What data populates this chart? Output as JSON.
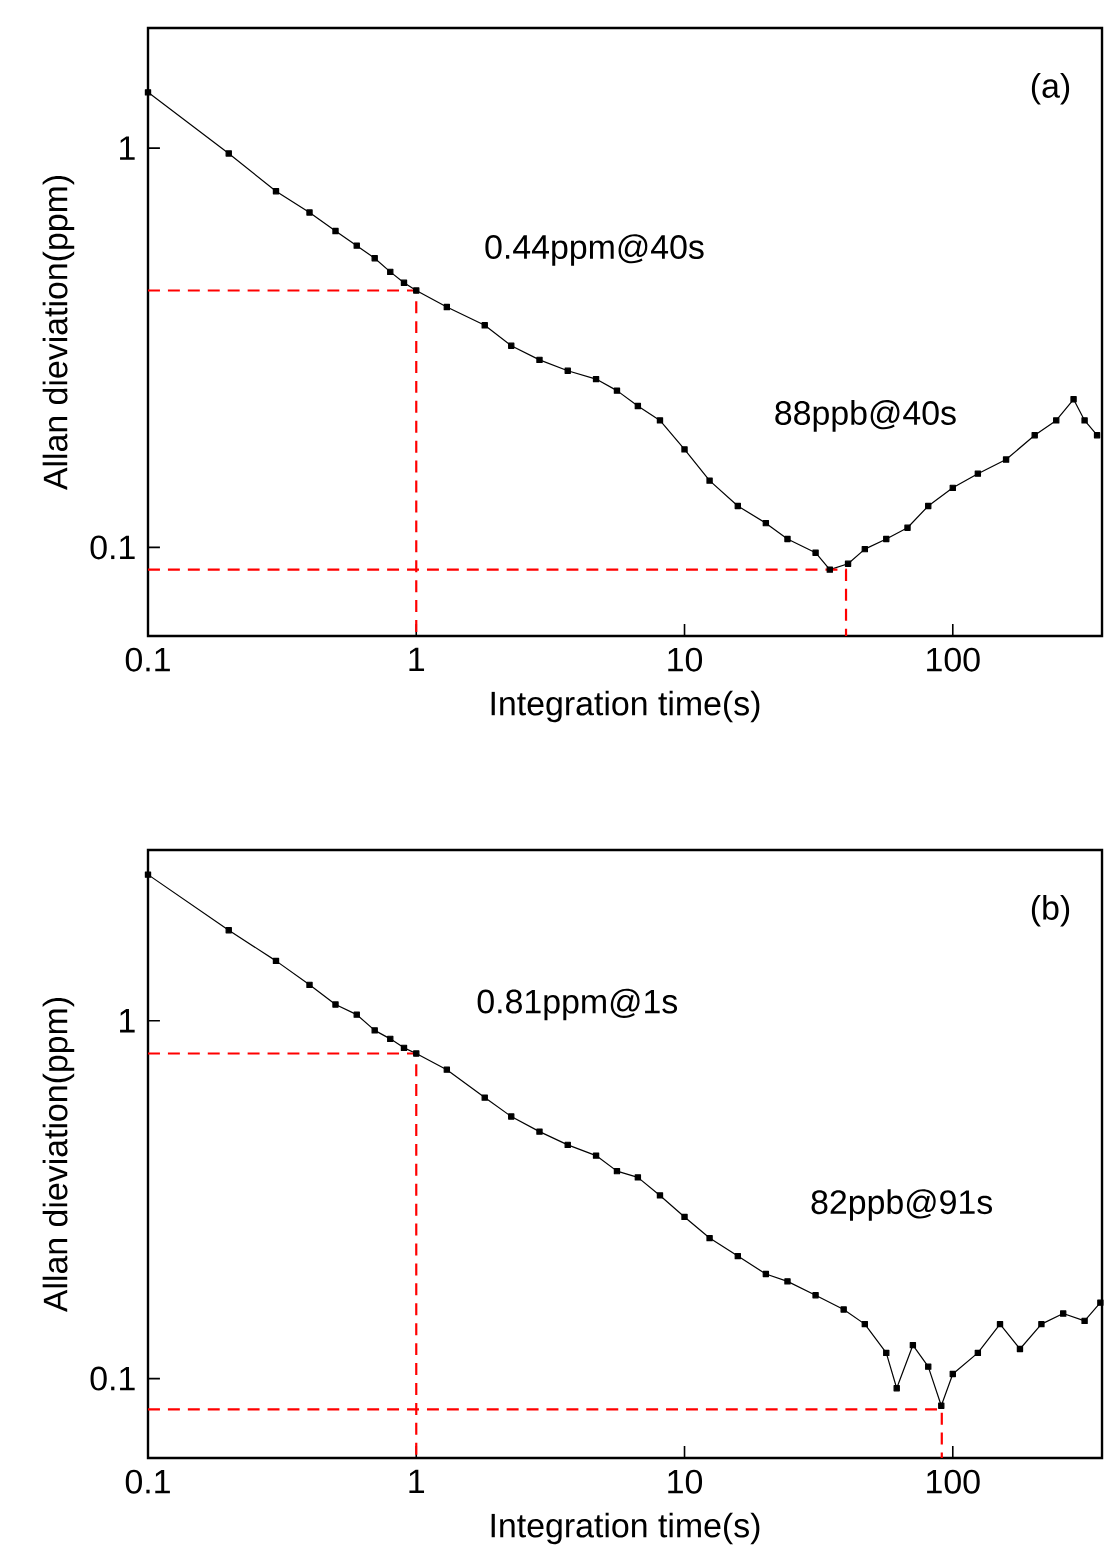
{
  "chart_data": [
    {
      "type": "line",
      "xlabel": "Integration time(s)",
      "ylabel": "Allan dieviation(ppm)",
      "log": "xy",
      "xlim": [
        0.1,
        360
      ],
      "ylim": [
        0.06,
        2
      ],
      "xticks": [
        0.1,
        1,
        10,
        100
      ],
      "yticks": [
        0.1,
        1
      ],
      "annotations": [
        "(a)",
        "0.44ppm@40s",
        "88ppb@40s"
      ],
      "series": [
        {
          "color": "#000000",
          "marker": "square",
          "line_style": "solid",
          "x": [
            0.1,
            0.2,
            0.3,
            0.4,
            0.5,
            0.6,
            0.7,
            0.8,
            0.9,
            1,
            1.3,
            1.8,
            2.26,
            2.88,
            3.67,
            4.68,
            5.6,
            6.7,
            8.1,
            10,
            12.4,
            15.8,
            20.1,
            24.2,
            30.8,
            34.8,
            40.7,
            47,
            56.5,
            67.8,
            81,
            100,
            124,
            158,
            202,
            243,
            282,
            310,
            345
          ],
          "values": [
            1.38,
            0.97,
            0.78,
            0.69,
            0.62,
            0.57,
            0.53,
            0.49,
            0.46,
            0.44,
            0.4,
            0.36,
            0.32,
            0.295,
            0.277,
            0.264,
            0.247,
            0.226,
            0.208,
            0.176,
            0.147,
            0.127,
            0.115,
            0.105,
            0.097,
            0.088,
            0.091,
            0.099,
            0.105,
            0.112,
            0.127,
            0.141,
            0.153,
            0.166,
            0.191,
            0.208,
            0.235,
            0.208,
            0.191
          ]
        },
        {
          "color": "#ff0000",
          "marker": "none",
          "line_style": "dashed",
          "x": [
            0.1,
            1,
            1
          ],
          "values": [
            0.44,
            0.44,
            0.06
          ]
        },
        {
          "color": "#ff0000",
          "marker": "none",
          "line_style": "dashed",
          "x": [
            0.1,
            40,
            40
          ],
          "values": [
            0.088,
            0.088,
            0.06
          ]
        }
      ]
    },
    {
      "type": "line",
      "xlabel": "Integration time(s)",
      "ylabel": "Allan dieviation(ppm)",
      "log": "xy",
      "xlim": [
        0.1,
        360
      ],
      "ylim": [
        0.06,
        3
      ],
      "xticks": [
        0.1,
        1,
        10,
        100
      ],
      "yticks": [
        0.1,
        1
      ],
      "annotations": [
        "(b)",
        "0.81ppm@1s",
        "82ppb@91s"
      ],
      "series": [
        {
          "color": "#000000",
          "marker": "square",
          "line_style": "solid",
          "x": [
            0.1,
            0.2,
            0.3,
            0.4,
            0.5,
            0.6,
            0.7,
            0.8,
            0.9,
            1,
            1.3,
            1.8,
            2.26,
            2.88,
            3.67,
            4.68,
            5.6,
            6.7,
            8.1,
            10,
            12.4,
            15.8,
            20.1,
            24.2,
            30.8,
            39.2,
            47,
            56.5,
            61.8,
            71,
            81,
            90.6,
            100,
            124,
            150,
            178,
            214,
            258,
            310,
            355
          ],
          "values": [
            2.56,
            1.79,
            1.47,
            1.26,
            1.11,
            1.04,
            0.94,
            0.89,
            0.84,
            0.81,
            0.73,
            0.61,
            0.54,
            0.49,
            0.45,
            0.42,
            0.38,
            0.365,
            0.325,
            0.283,
            0.247,
            0.22,
            0.196,
            0.187,
            0.171,
            0.156,
            0.142,
            0.118,
            0.094,
            0.124,
            0.108,
            0.084,
            0.103,
            0.118,
            0.142,
            0.121,
            0.142,
            0.152,
            0.145,
            0.163
          ]
        },
        {
          "color": "#ff0000",
          "marker": "none",
          "line_style": "dashed",
          "x": [
            0.1,
            1,
            1
          ],
          "values": [
            0.81,
            0.81,
            0.06
          ]
        },
        {
          "color": "#ff0000",
          "marker": "none",
          "line_style": "dashed",
          "x": [
            0.1,
            91,
            91
          ],
          "values": [
            0.082,
            0.082,
            0.06
          ]
        }
      ]
    }
  ]
}
